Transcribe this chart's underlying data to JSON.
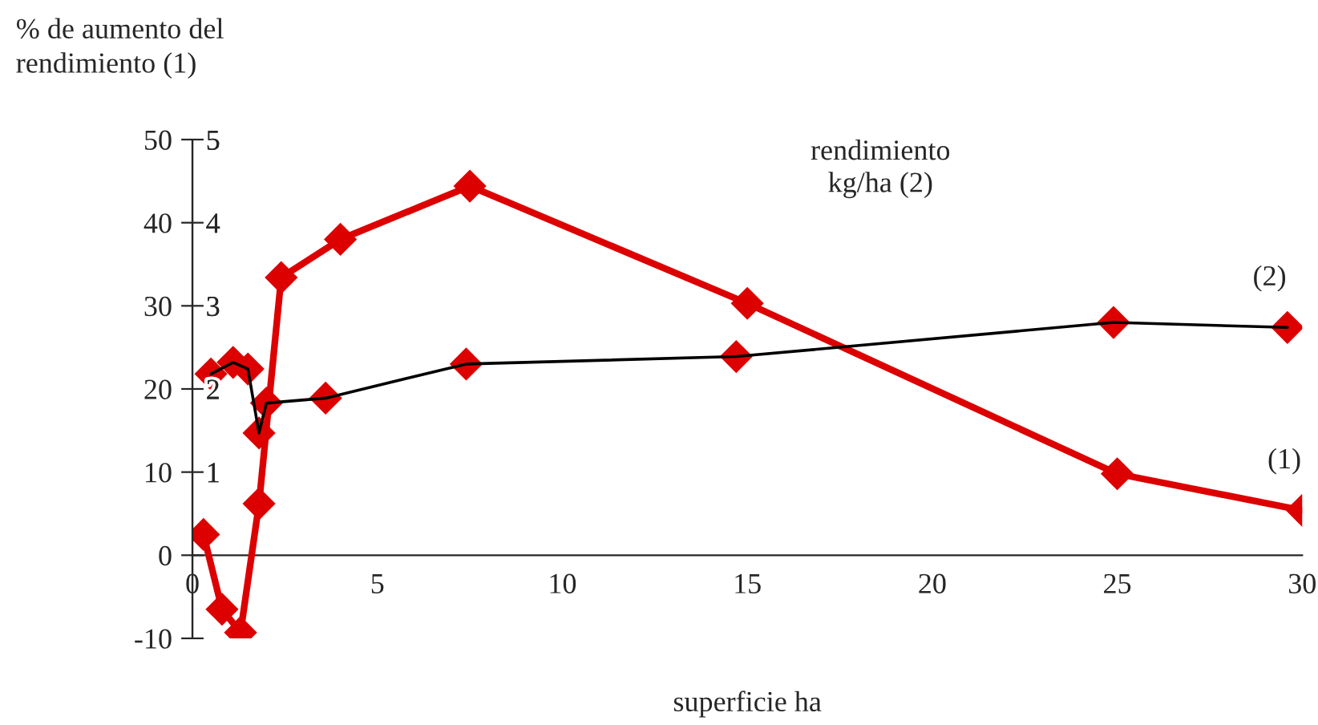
{
  "chart_data": {
    "type": "line",
    "xlabel": "superficie ha",
    "ylabel": "% de aumento del\nrendimiento (1)",
    "y2label": "rendimiento\nkg/ha (2)",
    "xlim": [
      0,
      30
    ],
    "xticks": [
      0,
      5,
      10,
      15,
      20,
      25,
      30
    ],
    "ylim": [
      -10,
      50
    ],
    "yticks": [
      -10,
      0,
      10,
      20,
      30,
      40,
      50
    ],
    "y2lim": [
      -1,
      5
    ],
    "y2ticks": [
      1,
      2,
      3,
      4,
      5
    ],
    "grid": false,
    "legend": false,
    "marker": "diamond",
    "line_style": "solid",
    "series": [
      {
        "name": "(1)",
        "color": "#dd0000",
        "x": [
          0.3,
          0.8,
          1.3,
          1.8,
          2.4,
          4.0,
          7.5,
          15.0,
          25.0,
          30.0
        ],
        "values": [
          2.5,
          -6.5,
          -9.3,
          6.2,
          33.4,
          38.0,
          44.4,
          30.3,
          9.8,
          5.4
        ]
      },
      {
        "name": "(2)",
        "axis": "y2",
        "color": "#000000",
        "colors": [
          "#dd0000",
          "#dd0000",
          "#dd0000",
          "#dd0000",
          "#dd0000",
          "#dd0000",
          "#dd0000",
          "#dd0000",
          "#dd0000",
          "#dd0000"
        ],
        "x": [
          0.5,
          1.1,
          1.5,
          1.8,
          2.0,
          3.6,
          7.4,
          14.7,
          24.9,
          29.6
        ],
        "values": [
          2.18,
          2.32,
          2.24,
          1.47,
          1.83,
          1.89,
          2.3,
          2.39,
          2.8,
          2.74
        ]
      }
    ]
  }
}
